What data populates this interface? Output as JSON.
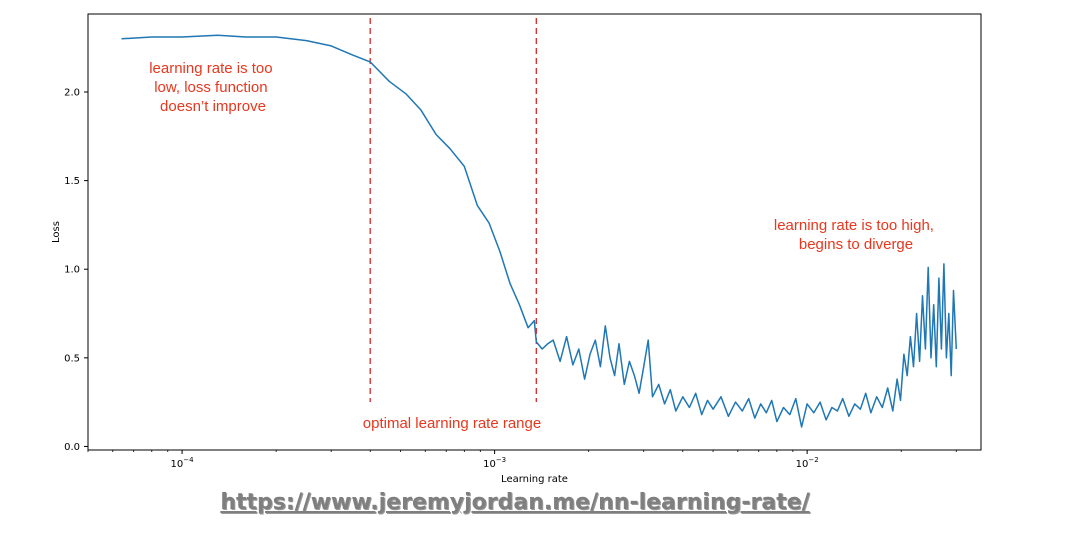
{
  "chart_data": {
    "type": "line",
    "title": "",
    "xlabel": "Learning rate",
    "ylabel": "Loss",
    "xscale": "log",
    "xlim": [
      5e-05,
      0.036
    ],
    "ylim": [
      -0.02,
      2.44
    ],
    "yticks": [
      0.0,
      0.5,
      1.0,
      1.5,
      2.0
    ],
    "ytick_labels": [
      "0.0",
      "0.5",
      "1.0",
      "1.5",
      "2.0"
    ],
    "xticks": [
      0.0001,
      0.001,
      0.01
    ],
    "xtick_labels": [
      {
        "base": "10",
        "exp": "−4"
      },
      {
        "base": "10",
        "exp": "−3"
      },
      {
        "base": "10",
        "exp": "−2"
      }
    ],
    "grid": false,
    "line_color": "#1f77b4",
    "vlines": [
      {
        "x": 0.0004,
        "color": "#d62728",
        "style": "dashed"
      },
      {
        "x": 0.00136,
        "color": "#d62728",
        "style": "dashed"
      }
    ],
    "series": [
      {
        "x": [
          6.4e-05,
          8e-05,
          0.0001,
          0.00013,
          0.00016,
          0.0002,
          0.00025,
          0.0003,
          0.00035,
          0.0004,
          0.00046,
          0.00052,
          0.00058,
          0.00065,
          0.00072,
          0.0008,
          0.00088,
          0.00096,
          0.00104,
          0.00112,
          0.0012,
          0.00128,
          0.00134,
          0.00136,
          0.00142,
          0.00148,
          0.00154,
          0.00162,
          0.0017,
          0.00178,
          0.00186,
          0.00194,
          0.00202,
          0.0021,
          0.00218,
          0.00226,
          0.00234,
          0.00242,
          0.0025,
          0.0026,
          0.0027,
          0.0028,
          0.0029,
          0.003,
          0.0031,
          0.0032,
          0.00335,
          0.0035,
          0.00365,
          0.0038,
          0.004,
          0.0042,
          0.0044,
          0.0046,
          0.0048,
          0.005,
          0.0053,
          0.0056,
          0.0059,
          0.0062,
          0.0065,
          0.0068,
          0.0071,
          0.0074,
          0.0077,
          0.008,
          0.0084,
          0.0088,
          0.0092,
          0.0096,
          0.01,
          0.0105,
          0.011,
          0.0115,
          0.012,
          0.0125,
          0.013,
          0.0136,
          0.0142,
          0.0148,
          0.0154,
          0.016,
          0.0167,
          0.0174,
          0.0181,
          0.0188,
          0.0194,
          0.0199,
          0.0204,
          0.0209,
          0.0214,
          0.0219,
          0.0224,
          0.0229,
          0.0234,
          0.0239,
          0.0244,
          0.0249,
          0.0254,
          0.0259,
          0.0264,
          0.0269,
          0.0274,
          0.0279,
          0.0284,
          0.0289,
          0.0294,
          0.03
        ],
        "y": [
          2.3,
          2.31,
          2.31,
          2.32,
          2.31,
          2.31,
          2.29,
          2.26,
          2.21,
          2.17,
          2.06,
          1.99,
          1.9,
          1.76,
          1.68,
          1.58,
          1.36,
          1.26,
          1.1,
          0.92,
          0.8,
          0.67,
          0.71,
          0.59,
          0.55,
          0.58,
          0.6,
          0.48,
          0.62,
          0.46,
          0.55,
          0.38,
          0.52,
          0.6,
          0.45,
          0.68,
          0.5,
          0.4,
          0.58,
          0.35,
          0.48,
          0.4,
          0.3,
          0.45,
          0.6,
          0.28,
          0.35,
          0.24,
          0.32,
          0.2,
          0.28,
          0.22,
          0.3,
          0.18,
          0.26,
          0.21,
          0.28,
          0.17,
          0.25,
          0.2,
          0.27,
          0.16,
          0.24,
          0.19,
          0.26,
          0.14,
          0.22,
          0.18,
          0.27,
          0.11,
          0.24,
          0.19,
          0.25,
          0.15,
          0.22,
          0.2,
          0.27,
          0.17,
          0.24,
          0.21,
          0.3,
          0.19,
          0.28,
          0.22,
          0.33,
          0.2,
          0.38,
          0.26,
          0.52,
          0.4,
          0.62,
          0.45,
          0.75,
          0.48,
          0.85,
          0.55,
          1.01,
          0.5,
          0.8,
          0.45,
          0.95,
          0.55,
          1.03,
          0.5,
          0.75,
          0.4,
          0.88,
          0.55
        ]
      }
    ],
    "annotations": [
      {
        "lines": [
          "learning rate is too",
          "low, loss function",
          "doesn’t improve"
        ],
        "color": "#e8371e"
      },
      {
        "lines": [
          "optimal learning rate range"
        ],
        "color": "#e8371e"
      },
      {
        "lines": [
          "learning rate is too high,",
          "begins to diverge"
        ],
        "color": "#e8371e"
      }
    ]
  },
  "source_url": "https://www.jeremyjordan.me/nn-learning-rate/"
}
